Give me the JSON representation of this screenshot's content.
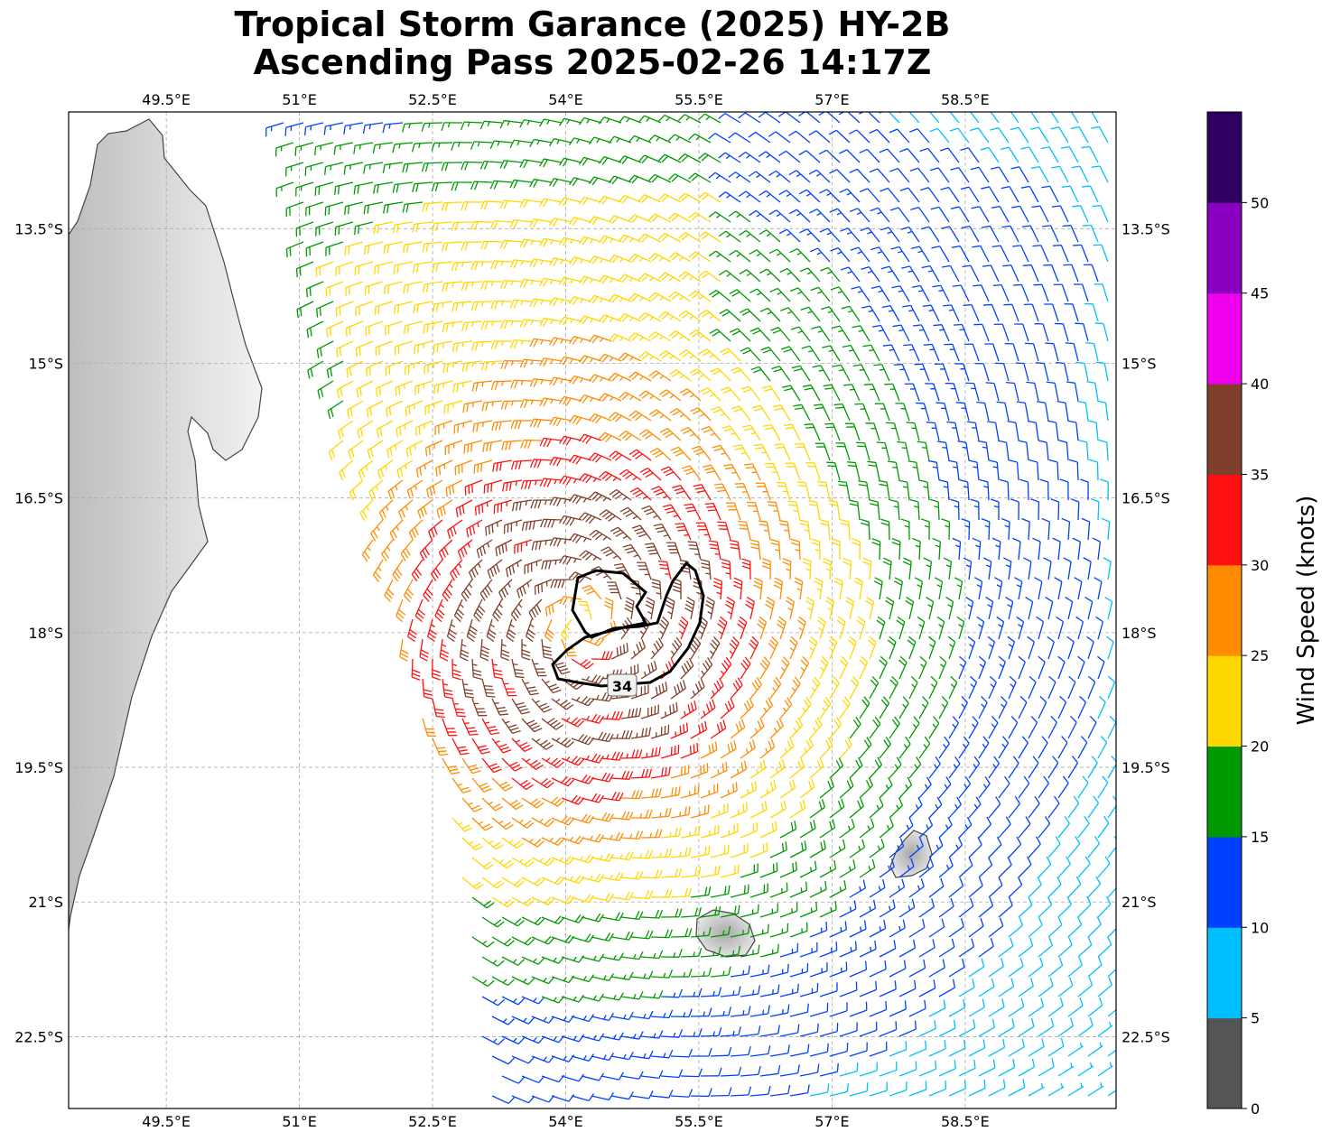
{
  "title": {
    "line1": "Tropical Storm Garance (2025) HY-2B",
    "line2": "Ascending Pass 2025-02-26 14:17Z"
  },
  "map": {
    "lon_range": [
      48.4,
      60.2
    ],
    "lat_range": [
      -23.3,
      -12.2
    ],
    "lon_ticks": [
      "49.5°E",
      "51°E",
      "52.5°E",
      "54°E",
      "55.5°E",
      "57°E",
      "58.5°E"
    ],
    "lon_tick_values": [
      49.5,
      51,
      52.5,
      54,
      55.5,
      57,
      58.5
    ],
    "lat_ticks": [
      "13.5°S",
      "15°S",
      "16.5°S",
      "18°S",
      "19.5°S",
      "21°S",
      "22.5°S"
    ],
    "lat_tick_values": [
      -13.5,
      -15,
      -16.5,
      -18,
      -19.5,
      -21,
      -22.5
    ],
    "gridlines": true,
    "land": [
      "Madagascar",
      "Reunion",
      "Mauritius"
    ],
    "storm_center": {
      "lon": 54.2,
      "lat": -17.9
    },
    "contour_label": "34"
  },
  "colorbar": {
    "label": "Wind Speed (knots)",
    "ticks": [
      "0",
      "5",
      "10",
      "15",
      "20",
      "25",
      "30",
      "35",
      "40",
      "45",
      "50"
    ],
    "colors": [
      "#555555",
      "#00bfff",
      "#0040ff",
      "#009900",
      "#ffd700",
      "#ff8c00",
      "#ff1010",
      "#7f3f2a",
      "#ee00ee",
      "#8b00c0",
      "#2e005f"
    ]
  }
}
